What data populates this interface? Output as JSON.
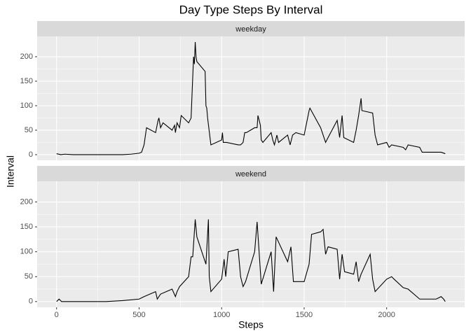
{
  "chart_data": {
    "type": "line",
    "title": "Day Type Steps By Interval",
    "xlabel": "Steps",
    "ylabel": "Interval",
    "xlim": [
      -117.75,
      2472.75
    ],
    "ylim": [
      -11.5,
      241.5
    ],
    "xticks": [
      0,
      500,
      1000,
      1500,
      2000
    ],
    "yticks": [
      0,
      50,
      100,
      150,
      200
    ],
    "grid": true,
    "minor_grid": true,
    "color": "#000000",
    "facets": [
      {
        "name": "weekday",
        "x": [
          0,
          25,
          50,
          100,
          200,
          300,
          400,
          450,
          500,
          515,
          530,
          545,
          600,
          615,
          620,
          630,
          645,
          700,
          715,
          720,
          730,
          745,
          755,
          800,
          815,
          830,
          835,
          840,
          845,
          850,
          900,
          905,
          910,
          915,
          935,
          1000,
          1005,
          1010,
          1030,
          1100,
          1115,
          1130,
          1140,
          1150,
          1200,
          1215,
          1220,
          1235,
          1240,
          1250,
          1300,
          1310,
          1320,
          1335,
          1345,
          1400,
          1415,
          1430,
          1450,
          1500,
          1530,
          1535,
          1600,
          1630,
          1645,
          1700,
          1715,
          1730,
          1740,
          1800,
          1815,
          1830,
          1845,
          1850,
          1915,
          1930,
          1945,
          2000,
          2015,
          2030,
          2100,
          2115,
          2130,
          2200,
          2215,
          2300,
          2330,
          2355
        ],
        "values": [
          2,
          0,
          1,
          0,
          0,
          0,
          0,
          1,
          3,
          5,
          20,
          55,
          45,
          70,
          75,
          55,
          65,
          50,
          60,
          45,
          65,
          55,
          80,
          65,
          75,
          200,
          185,
          230,
          200,
          190,
          170,
          100,
          95,
          75,
          20,
          30,
          45,
          25,
          25,
          20,
          20,
          25,
          45,
          45,
          55,
          55,
          80,
          60,
          30,
          25,
          45,
          30,
          20,
          40,
          25,
          40,
          20,
          40,
          45,
          40,
          90,
          95,
          55,
          25,
          35,
          70,
          35,
          80,
          35,
          25,
          50,
          80,
          115,
          90,
          85,
          40,
          20,
          25,
          15,
          20,
          15,
          10,
          20,
          15,
          5,
          5,
          5,
          2
        ]
      },
      {
        "name": "weekend",
        "x": [
          0,
          15,
          30,
          100,
          200,
          300,
          400,
          500,
          530,
          600,
          610,
          630,
          700,
          720,
          730,
          745,
          800,
          815,
          825,
          835,
          840,
          850,
          905,
          920,
          925,
          935,
          1000,
          1015,
          1025,
          1040,
          1100,
          1115,
          1130,
          1145,
          1200,
          1215,
          1225,
          1240,
          1300,
          1315,
          1330,
          1400,
          1420,
          1435,
          1500,
          1530,
          1545,
          1600,
          1615,
          1630,
          1645,
          1700,
          1715,
          1730,
          1745,
          1800,
          1815,
          1830,
          1845,
          1900,
          1915,
          1930,
          2000,
          2030,
          2045,
          2100,
          2130,
          2200,
          2300,
          2330,
          2345,
          2355
        ],
        "values": [
          0,
          5,
          0,
          0,
          0,
          0,
          2,
          5,
          10,
          20,
          5,
          15,
          25,
          10,
          20,
          30,
          50,
          90,
          90,
          140,
          165,
          130,
          75,
          165,
          50,
          20,
          45,
          85,
          50,
          100,
          105,
          50,
          30,
          40,
          100,
          160,
          110,
          35,
          100,
          20,
          130,
          80,
          110,
          40,
          40,
          75,
          135,
          140,
          145,
          95,
          110,
          105,
          45,
          95,
          60,
          55,
          80,
          40,
          55,
          95,
          45,
          20,
          45,
          50,
          45,
          28,
          25,
          5,
          5,
          10,
          5,
          0
        ]
      }
    ]
  }
}
